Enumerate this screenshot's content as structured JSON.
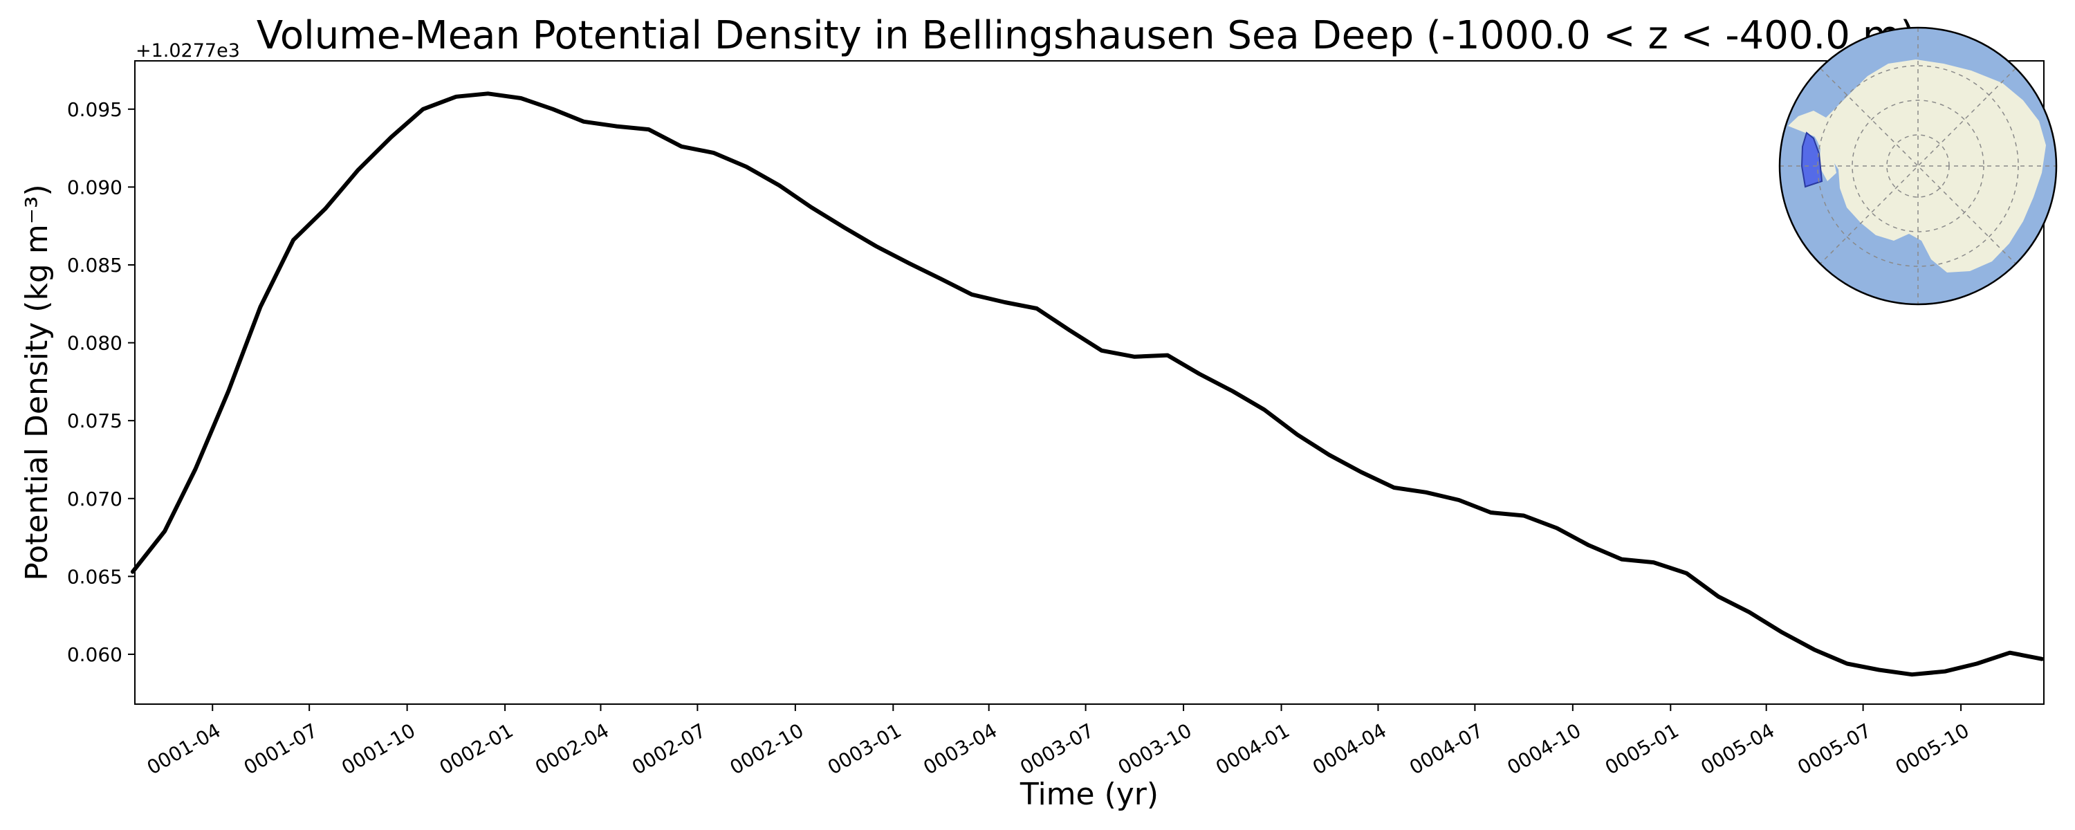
{
  "chart_data": {
    "type": "line",
    "title": "Volume-Mean Potential Density in Bellingshausen Sea Deep (-1000.0 < z < -400.0 m)",
    "xlabel": "Time (yr)",
    "ylabel": "Potential Density (kg m⁻³)",
    "y_offset_label": "+1.0277e3",
    "y_offset": 1027.7,
    "ylim": [
      0.0568,
      0.0981
    ],
    "xlim": [
      "0001-01-18",
      "0005-12-18"
    ],
    "grid": false,
    "legend": "none",
    "line_color": "#000000",
    "y_ticks": [
      0.06,
      0.065,
      0.07,
      0.075,
      0.08,
      0.085,
      0.09,
      0.095
    ],
    "y_tick_labels": [
      "0.060",
      "0.065",
      "0.070",
      "0.075",
      "0.080",
      "0.085",
      "0.090",
      "0.095"
    ],
    "x_ticks": [
      "0001-04",
      "0001-07",
      "0001-10",
      "0002-01",
      "0002-04",
      "0002-07",
      "0002-10",
      "0003-01",
      "0003-04",
      "0003-07",
      "0003-10",
      "0004-01",
      "0004-04",
      "0004-07",
      "0004-10",
      "0005-01",
      "0005-04",
      "0005-07",
      "0005-10"
    ],
    "x": [
      "0001-01-16",
      "0001-02-15",
      "0001-03-16",
      "0001-04-16",
      "0001-05-16",
      "0001-06-16",
      "0001-07-16",
      "0001-08-16",
      "0001-09-16",
      "0001-10-16",
      "0001-11-16",
      "0001-12-16",
      "0002-01-16",
      "0002-02-15",
      "0002-03-16",
      "0002-04-16",
      "0002-05-16",
      "0002-06-16",
      "0002-07-16",
      "0002-08-16",
      "0002-09-16",
      "0002-10-16",
      "0002-11-16",
      "0002-12-16",
      "0003-01-16",
      "0003-02-15",
      "0003-03-16",
      "0003-04-16",
      "0003-05-16",
      "0003-06-16",
      "0003-07-16",
      "0003-08-16",
      "0003-09-16",
      "0003-10-16",
      "0003-11-16",
      "0003-12-16",
      "0004-01-16",
      "0004-02-15",
      "0004-03-16",
      "0004-04-16",
      "0004-05-16",
      "0004-06-16",
      "0004-07-16",
      "0004-08-16",
      "0004-09-16",
      "0004-10-16",
      "0004-11-16",
      "0004-12-16",
      "0005-01-16",
      "0005-02-15",
      "0005-03-16",
      "0005-04-16",
      "0005-05-16",
      "0005-06-16",
      "0005-07-16",
      "0005-08-16",
      "0005-09-16",
      "0005-10-16",
      "0005-11-16",
      "0005-12-16"
    ],
    "values": [
      0.0653,
      0.0679,
      0.0719,
      0.0769,
      0.0823,
      0.0866,
      0.0886,
      0.0911,
      0.0932,
      0.095,
      0.0958,
      0.096,
      0.0957,
      0.095,
      0.0942,
      0.0939,
      0.0937,
      0.0926,
      0.0922,
      0.0913,
      0.0901,
      0.0887,
      0.0874,
      0.0862,
      0.0851,
      0.0841,
      0.0831,
      0.0826,
      0.0822,
      0.0808,
      0.0795,
      0.0791,
      0.0792,
      0.078,
      0.0769,
      0.0757,
      0.0741,
      0.0728,
      0.0717,
      0.0707,
      0.0704,
      0.0699,
      0.0691,
      0.0689,
      0.0681,
      0.067,
      0.0661,
      0.0659,
      0.0652,
      0.0637,
      0.0627,
      0.0614,
      0.0603,
      0.0594,
      0.059,
      0.0587,
      0.0589,
      0.0594,
      0.0601,
      0.0597
    ]
  },
  "inset_map": {
    "projection": "south-polar-stereographic",
    "ocean_color": "#93b4e0",
    "land_color": "#efefdc",
    "region_color": "#4a5ee8",
    "region": "Bellingshausen Sea"
  }
}
